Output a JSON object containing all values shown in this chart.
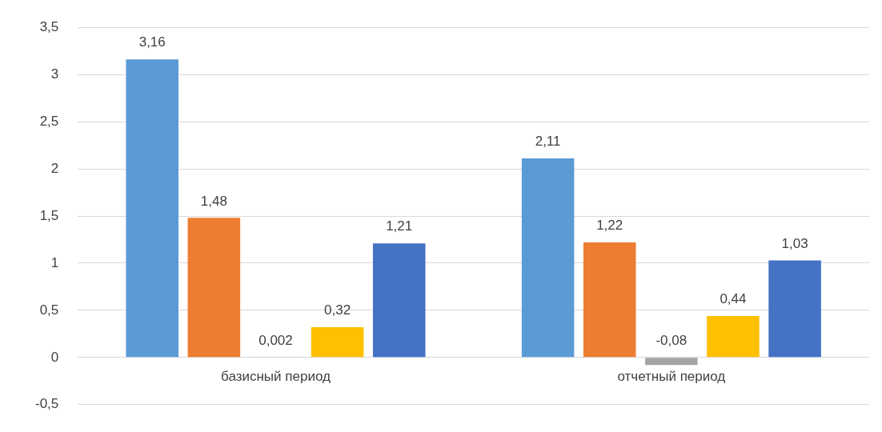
{
  "chart_data": {
    "type": "bar",
    "categories": [
      "базисный период",
      "отчетный период"
    ],
    "series": [
      {
        "color": "#5b9bd5",
        "values": [
          3.16,
          2.11
        ],
        "value_labels": [
          "3,16",
          "2,11"
        ]
      },
      {
        "color": "#ed7d31",
        "values": [
          1.48,
          1.22
        ],
        "value_labels": [
          "1,48",
          "1,22"
        ]
      },
      {
        "color": "#a5a5a5",
        "values": [
          0.002,
          -0.08
        ],
        "value_labels": [
          "0,002",
          "-0,08"
        ]
      },
      {
        "color": "#ffc000",
        "values": [
          0.32,
          0.44
        ],
        "value_labels": [
          "0,32",
          "0,44"
        ]
      },
      {
        "color": "#4472c4",
        "values": [
          1.21,
          1.03
        ],
        "value_labels": [
          "1,21",
          "1,03"
        ]
      }
    ],
    "ylim": [
      -0.5,
      3.5
    ],
    "yticks": [
      {
        "value": -0.5,
        "label": "-0,5"
      },
      0,
      {
        "value": 0.5,
        "label": "0,5"
      },
      1,
      {
        "value": 1.5,
        "label": "1,5"
      },
      2,
      {
        "value": 2.5,
        "label": "2,5"
      },
      3,
      {
        "value": 3.5,
        "label": "3,5"
      }
    ],
    "grid": "y",
    "legend": false
  }
}
